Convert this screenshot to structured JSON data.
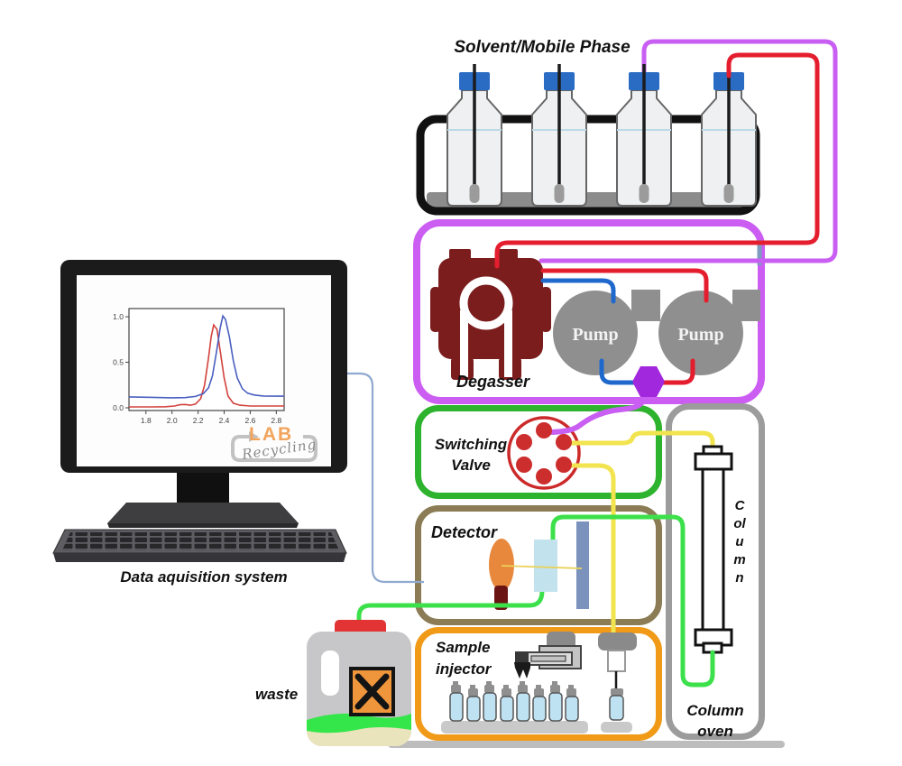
{
  "labels": {
    "solvent": "Solvent/Mobile Phase",
    "degasser": "Degasser",
    "pump": "Pump",
    "switching": "Switching\nValve",
    "detector": "Detector",
    "injector": "Sample\ninjector",
    "column": "Column",
    "oven": "Column\noven",
    "waste": "waste",
    "data_system": "Data aquisition system",
    "logo_top": "LAB",
    "logo_script": "Recycling"
  },
  "colors": {
    "degasser_box": "#cb5df2",
    "valve_box": "#2db32d",
    "detector_box": "#8b7c55",
    "injector_box": "#f09a18",
    "oven_box": "#9c9c9c",
    "magenta_tube": "#c95ef2",
    "red_tube": "#e41e2e",
    "blue_tube": "#2069cc",
    "yellow_tube": "#f2e44e",
    "green_tube": "#3ce04a",
    "data_line": "#8fa9cf",
    "degasser_unit": "#7c1d1d",
    "pump_gray": "#8f8f8f",
    "mixer_purple": "#a228dd",
    "valve_red": "#cc2d2d",
    "bottle_cap_blue": "#2a6bc4",
    "hazard_orange": "#ef953c",
    "waste_cap_red": "#e23434",
    "logo_orange": "#f2a45c"
  },
  "chart_data": {
    "type": "line",
    "title": "",
    "xlabel": "",
    "ylabel": "",
    "xlim": [
      1.67,
      2.86
    ],
    "ylim": [
      -0.03,
      1.09
    ],
    "x_ticks": [
      1.8,
      2.0,
      2.2,
      2.4,
      2.6,
      2.8
    ],
    "y_ticks": [
      0.0,
      0.5,
      1.0
    ],
    "grid": false,
    "legend": "none",
    "series": [
      {
        "name": "red-trace",
        "color": "#d2423c",
        "x": [
          1.67,
          1.85,
          1.95,
          2.02,
          2.06,
          2.1,
          2.14,
          2.18,
          2.22,
          2.25,
          2.28,
          2.3,
          2.32,
          2.345,
          2.37,
          2.4,
          2.43,
          2.47,
          2.52,
          2.6,
          2.7,
          2.86
        ],
        "y": [
          0.01,
          0.01,
          0.012,
          0.02,
          0.033,
          0.036,
          0.028,
          0.04,
          0.1,
          0.25,
          0.55,
          0.78,
          0.91,
          0.86,
          0.62,
          0.33,
          0.13,
          0.05,
          0.028,
          0.02,
          0.02,
          0.02
        ]
      },
      {
        "name": "blue-trace",
        "color": "#4a5fc0",
        "x": [
          1.67,
          1.85,
          2.0,
          2.1,
          2.18,
          2.24,
          2.28,
          2.31,
          2.34,
          2.37,
          2.39,
          2.41,
          2.44,
          2.47,
          2.5,
          2.54,
          2.58,
          2.63,
          2.7,
          2.8,
          2.86
        ],
        "y": [
          0.12,
          0.115,
          0.11,
          0.112,
          0.125,
          0.155,
          0.22,
          0.35,
          0.6,
          0.88,
          1.01,
          0.97,
          0.78,
          0.52,
          0.33,
          0.21,
          0.16,
          0.14,
          0.13,
          0.128,
          0.128
        ]
      }
    ]
  }
}
